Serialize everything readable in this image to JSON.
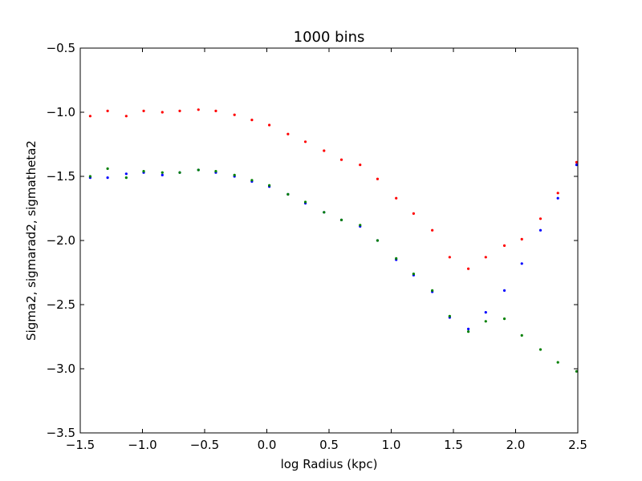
{
  "chart_data": {
    "type": "scatter",
    "title": "1000 bins",
    "xlabel": "log Radius (kpc)",
    "ylabel": "Sigma2, sigmarad2, sigmatheta2",
    "xlim": [
      -1.5,
      2.5
    ],
    "ylim": [
      -3.5,
      -0.5
    ],
    "xticks": [
      -1.5,
      -1.0,
      -0.5,
      0.0,
      0.5,
      1.0,
      1.5,
      2.0,
      2.5
    ],
    "yticks": [
      -3.5,
      -3.0,
      -2.5,
      -2.0,
      -1.5,
      -1.0,
      -0.5
    ],
    "xtick_labels": [
      "−1.5",
      "−1.0",
      "−0.5",
      "0.0",
      "0.5",
      "1.0",
      "1.5",
      "2.0",
      "2.5"
    ],
    "ytick_labels": [
      "−3.5",
      "−3.0",
      "−2.5",
      "−2.0",
      "−1.5",
      "−1.0",
      "−0.5"
    ],
    "grid": false,
    "legend": "none",
    "series": [
      {
        "color": "#ff0000",
        "x": [
          -1.42,
          -1.28,
          -1.13,
          -0.99,
          -0.84,
          -0.7,
          -0.55,
          -0.41,
          -0.26,
          -0.12,
          0.02,
          0.17,
          0.31,
          0.46,
          0.6,
          0.75,
          0.89,
          1.04,
          1.18,
          1.33,
          1.47,
          1.62,
          1.76,
          1.91,
          2.05,
          2.2,
          2.34,
          2.49
        ],
        "y": [
          -1.03,
          -0.99,
          -1.03,
          -0.99,
          -1.0,
          -0.99,
          -0.98,
          -0.99,
          -1.02,
          -1.06,
          -1.1,
          -1.17,
          -1.23,
          -1.3,
          -1.37,
          -1.41,
          -1.52,
          -1.67,
          -1.79,
          -1.92,
          -2.13,
          -2.22,
          -2.13,
          -2.04,
          -1.99,
          -1.83,
          -1.63,
          -1.39
        ]
      },
      {
        "color": "#0000ff",
        "x": [
          -1.42,
          -1.28,
          -1.13,
          -0.99,
          -0.84,
          -0.7,
          -0.55,
          -0.41,
          -0.26,
          -0.12,
          0.02,
          0.17,
          0.31,
          0.46,
          0.6,
          0.75,
          0.89,
          1.04,
          1.18,
          1.33,
          1.47,
          1.62,
          1.76,
          1.91,
          2.05,
          2.2,
          2.34,
          2.49
        ],
        "y": [
          -1.51,
          -1.51,
          -1.48,
          -1.47,
          -1.49,
          -1.47,
          -1.45,
          -1.47,
          -1.5,
          -1.54,
          -1.58,
          -1.64,
          -1.71,
          -1.78,
          -1.84,
          -1.89,
          -2.0,
          -2.15,
          -2.27,
          -2.4,
          -2.6,
          -2.69,
          -2.56,
          -2.39,
          -2.18,
          -1.92,
          -1.67,
          -1.41
        ]
      },
      {
        "color": "#008000",
        "x": [
          -1.42,
          -1.28,
          -1.13,
          -0.99,
          -0.84,
          -0.7,
          -0.55,
          -0.41,
          -0.26,
          -0.12,
          0.02,
          0.17,
          0.31,
          0.46,
          0.6,
          0.75,
          0.89,
          1.04,
          1.18,
          1.33,
          1.47,
          1.62,
          1.76,
          1.91,
          2.05,
          2.2,
          2.34,
          2.49
        ],
        "y": [
          -1.5,
          -1.44,
          -1.51,
          -1.46,
          -1.47,
          -1.47,
          -1.45,
          -1.46,
          -1.49,
          -1.53,
          -1.57,
          -1.64,
          -1.7,
          -1.78,
          -1.84,
          -1.88,
          -2.0,
          -2.14,
          -2.26,
          -2.39,
          -2.59,
          -2.71,
          -2.63,
          -2.61,
          -2.74,
          -2.85,
          -2.95,
          -3.02
        ]
      }
    ]
  }
}
